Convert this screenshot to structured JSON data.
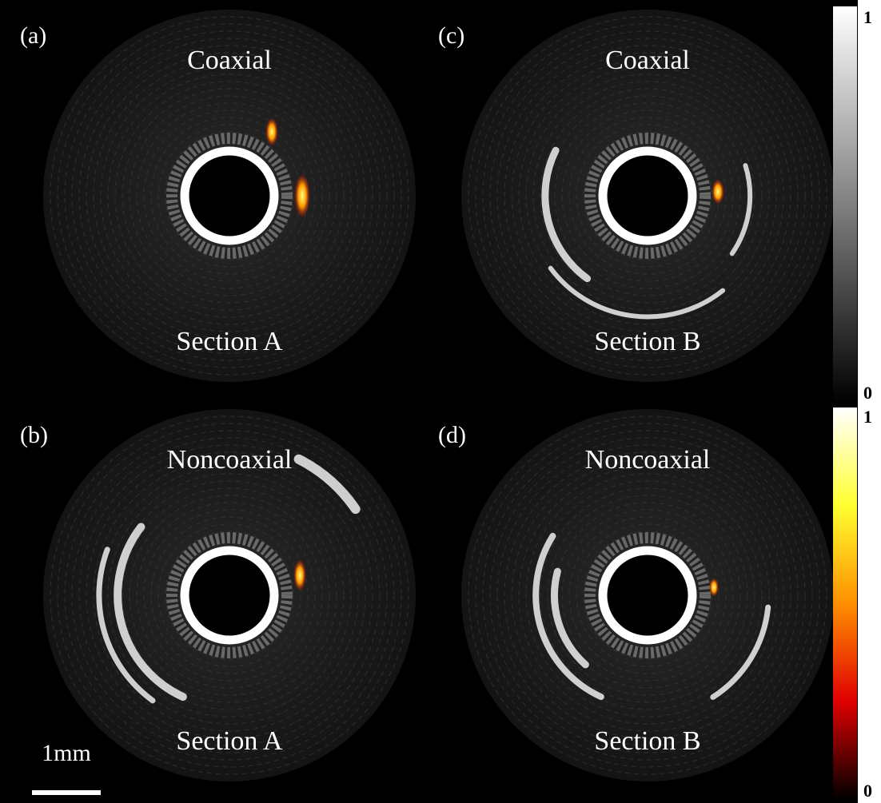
{
  "panels": [
    {
      "label": "(a)",
      "top": "Coaxial",
      "bottom": "Section A"
    },
    {
      "label": "(c)",
      "top": "Coaxial",
      "bottom": "Section B"
    },
    {
      "label": "(b)",
      "top": "Noncoaxial",
      "bottom": "Section A"
    },
    {
      "label": "(d)",
      "top": "Noncoaxial",
      "bottom": "Section B"
    }
  ],
  "colorbars": [
    {
      "max": 1,
      "min": 0
    },
    {
      "max": 1,
      "min": 0
    }
  ],
  "scale_bar": "1mm"
}
